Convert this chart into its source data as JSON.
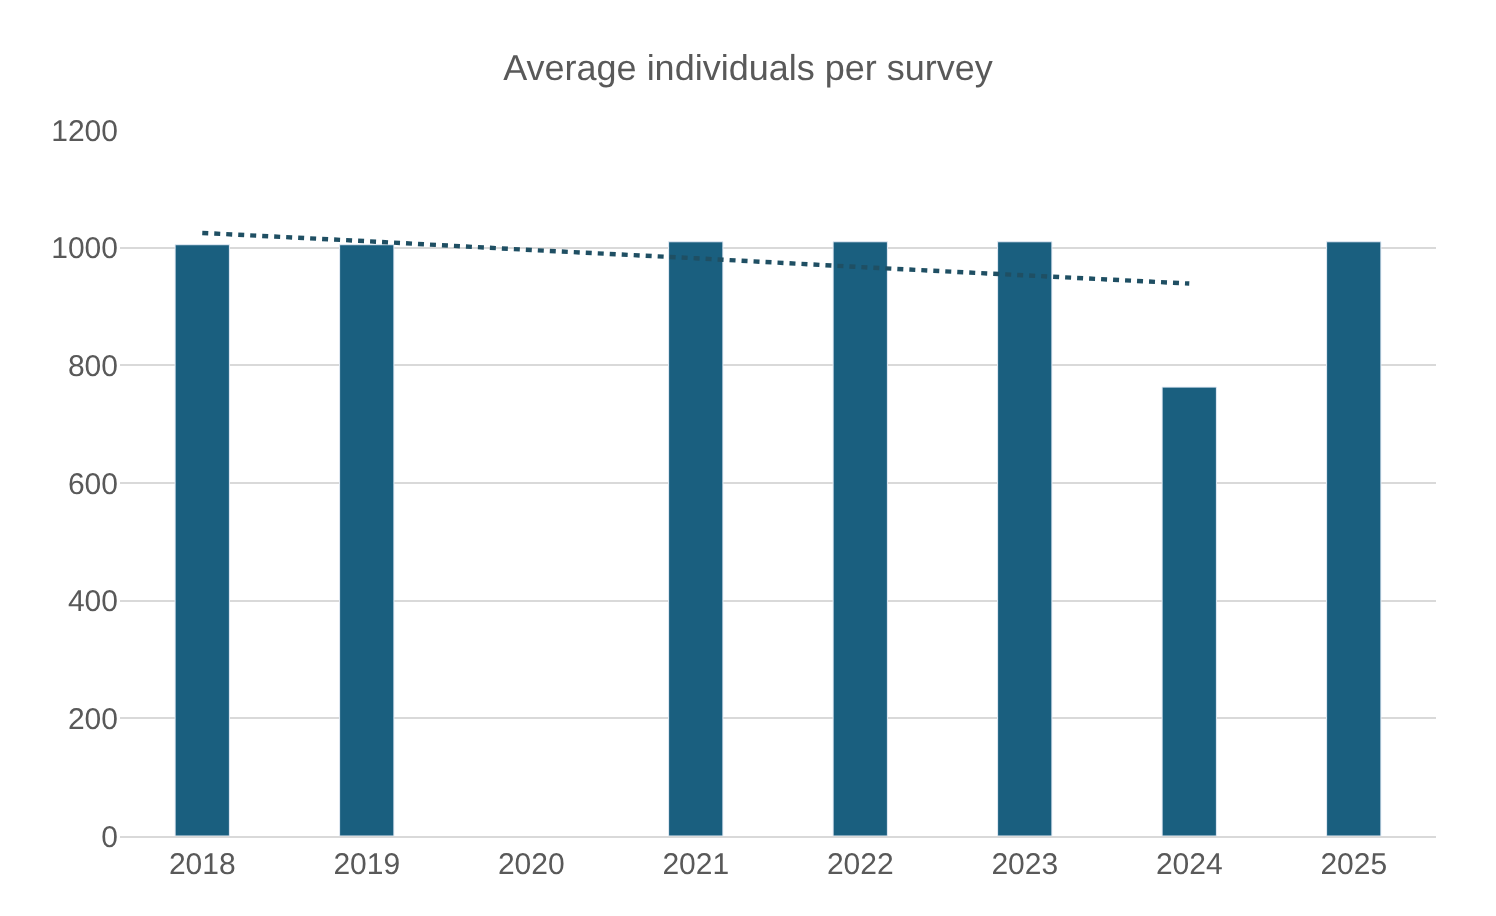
{
  "chart_data": {
    "type": "bar",
    "title": "Average individuals per survey",
    "categories": [
      "2018",
      "2019",
      "2020",
      "2021",
      "2022",
      "2023",
      "2024",
      "2025"
    ],
    "series": [
      {
        "color": "#1a5f7f",
        "values": [
          1005,
          1005,
          null,
          1010,
          1010,
          1010,
          763,
          1010
        ]
      },
      {
        "type": "line",
        "color": "#1f4f63",
        "line_style": "dotted",
        "marker": "none",
        "values": [
          1025,
          1011,
          996,
          982,
          967,
          953,
          939,
          null
        ]
      }
    ],
    "ylim": [
      0,
      1200
    ],
    "yticks": [
      0,
      200,
      400,
      600,
      800,
      1000,
      1200
    ],
    "grid": "y"
  }
}
